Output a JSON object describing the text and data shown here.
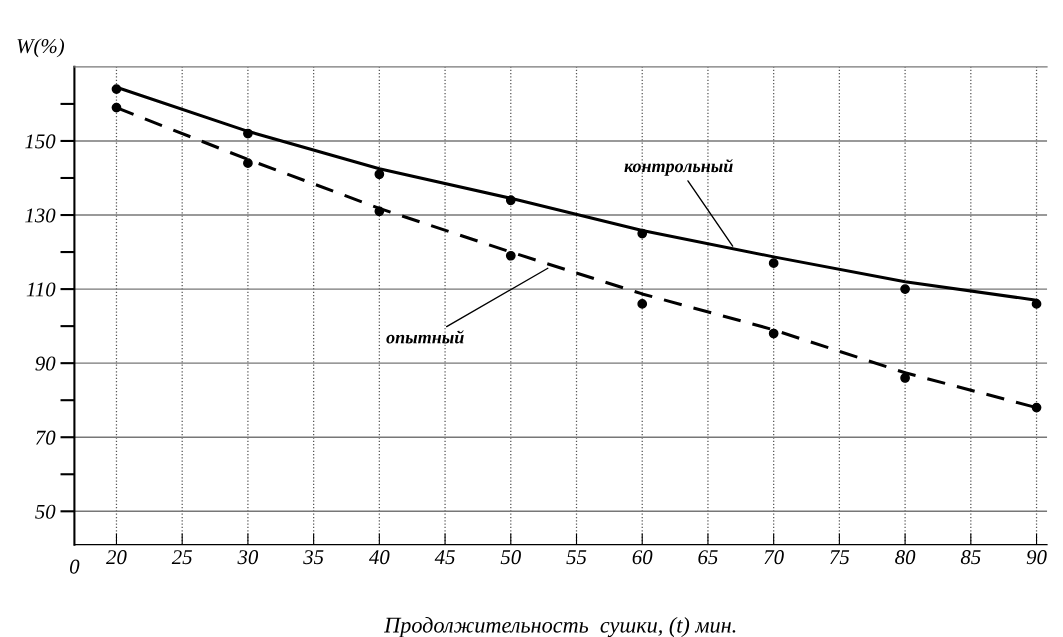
{
  "chart_data": {
    "type": "scatter",
    "xlabel": "Продолжительность  сушки, (t) мин.",
    "ylabel": "W(%)",
    "series": [
      {
        "type": "scatter",
        "marker": "circle",
        "color": "#000000",
        "x": [
          20,
          30,
          40,
          50,
          60,
          70,
          80,
          90
        ],
        "values": [
          164,
          152,
          141,
          134,
          125,
          117,
          110,
          106
        ]
      },
      {
        "type": "scatter",
        "marker": "circle",
        "color": "#000000",
        "x": [
          20,
          30,
          40,
          50,
          60,
          70,
          80,
          90
        ],
        "values": [
          159,
          144,
          131,
          119,
          106,
          98,
          86,
          78
        ]
      },
      {
        "type": "line",
        "marker": "none",
        "color": "#000000",
        "line_style": "solid",
        "x": [
          20,
          30,
          40,
          50,
          60,
          70,
          80,
          90
        ],
        "values": [
          164.5,
          152.6,
          142.5,
          134.5,
          125.8,
          118.7,
          112,
          107
        ]
      },
      {
        "type": "line",
        "marker": "none",
        "color": "#000000",
        "line_style": "dashed",
        "x": [
          20,
          30,
          40,
          50,
          60,
          70,
          80,
          90
        ],
        "values": [
          159,
          145,
          131.8,
          120,
          108.7,
          99,
          87.4,
          78
        ]
      }
    ],
    "annotations": [
      {
        "text": "контрольный",
        "x": 67,
        "y": 121
      },
      {
        "text": "опытный",
        "x": 53,
        "y": 116
      },
      "0"
    ],
    "xlim": [
      16.8,
      90.8
    ],
    "ylim": [
      41,
      170
    ],
    "xticks": [
      20,
      25,
      30,
      35,
      40,
      45,
      50,
      55,
      60,
      65,
      70,
      75,
      80,
      85,
      90
    ],
    "yticks": [
      50,
      {
        "value": 60,
        "label": null
      },
      70,
      {
        "value": 80,
        "label": null
      },
      90,
      {
        "value": 100,
        "label": null
      },
      110,
      {
        "value": 120,
        "label": null
      },
      130,
      {
        "value": 140,
        "label": null
      },
      150,
      {
        "value": 160,
        "label": null
      }
    ],
    "grid": true,
    "legend": false
  }
}
